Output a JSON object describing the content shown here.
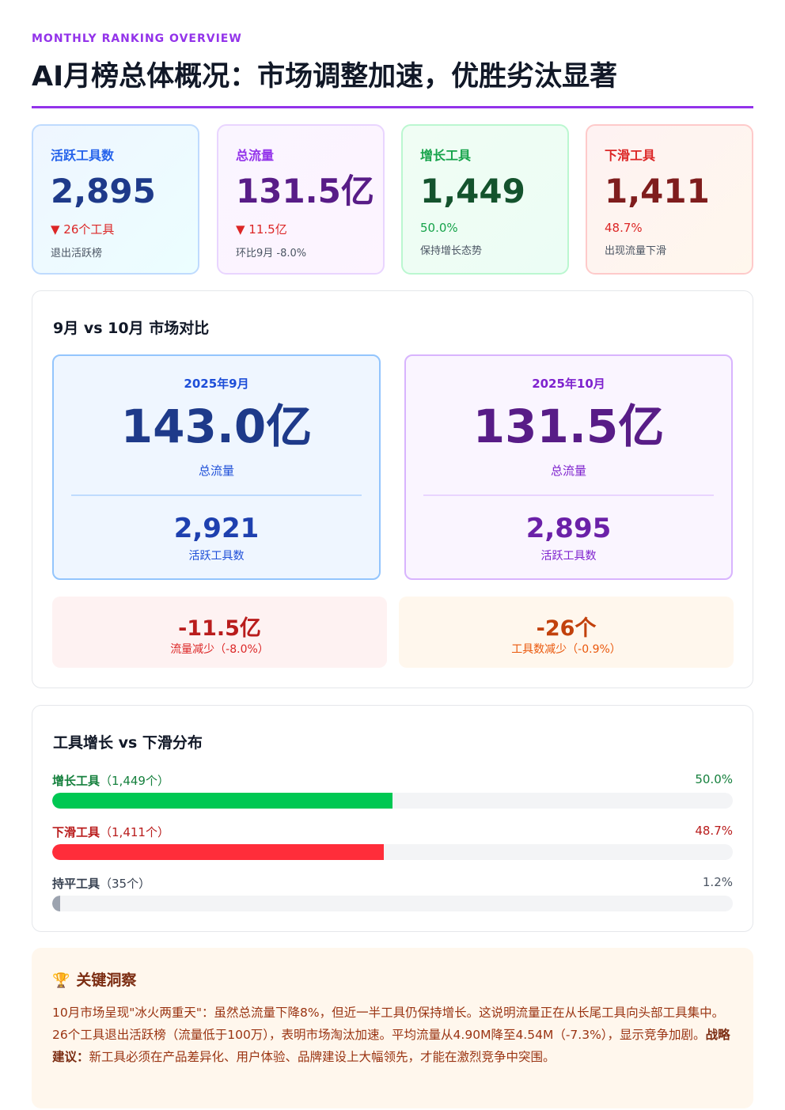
{
  "header": {
    "eyebrow": "MONTHLY RANKING OVERVIEW",
    "title": "AI月榜总体概况：市场调整加速，优胜劣汰显著"
  },
  "kpis": [
    {
      "label": "活跃工具数",
      "value": "2,895",
      "change": "▼ 26个工具",
      "sub": "退出活跃榜"
    },
    {
      "label": "总流量",
      "value": "131.5亿",
      "change": "▼ 11.5亿",
      "sub": "环比9月 -8.0%"
    },
    {
      "label": "增长工具",
      "value": "1,449",
      "change": "50.0%",
      "sub": "保持增长态势"
    },
    {
      "label": "下滑工具",
      "value": "1,411",
      "change": "48.7%",
      "sub": "出现流量下滑"
    }
  ],
  "comparison": {
    "title": "9月 vs 10月 市场对比",
    "september": {
      "month": "2025年9月",
      "traffic": "143.0亿",
      "traffic_label": "总流量",
      "tools": "2,921",
      "tools_label": "活跃工具数"
    },
    "october": {
      "month": "2025年10月",
      "traffic": "131.5亿",
      "traffic_label": "总流量",
      "tools": "2,895",
      "tools_label": "活跃工具数"
    },
    "delta_traffic": {
      "value": "-11.5亿",
      "label": "流量减少（-8.0%）"
    },
    "delta_tools": {
      "value": "-26个",
      "label": "工具数减少（-0.9%）"
    }
  },
  "distribution": {
    "title": "工具增长 vs 下滑分布",
    "rows": [
      {
        "name": "增长工具",
        "count": "（1,449个）",
        "pct_label": "50.0%",
        "pct": 0.5
      },
      {
        "name": "下滑工具",
        "count": "（1,411个）",
        "pct_label": "48.7%",
        "pct": 0.487
      },
      {
        "name": "持平工具",
        "count": "（35个）",
        "pct_label": "1.2%",
        "pct": 0.012
      }
    ]
  },
  "insight": {
    "icon": "trophy-icon",
    "title": "关键洞察",
    "text_1": "10月市场呈现\"冰火两重天\"：虽然总流量下降8%，但近一半工具仍保持增长。这说明流量正在从长尾工具向头部工具集中。26个工具退出活跃榜（流量低于100万），表明市场淘汰加速。平均流量从4.90M降至4.54M（-7.3%），显示竞争加剧。",
    "strong": "战略建议：",
    "text_2": "新工具必须在产品差异化、用户体验、品牌建设上大幅领先，才能在激烈竞争中突围。"
  },
  "colors": {
    "accent": "#9333ea",
    "growth": "#00c853",
    "decline": "#ff2d3a",
    "flat": "#9ca3af"
  }
}
